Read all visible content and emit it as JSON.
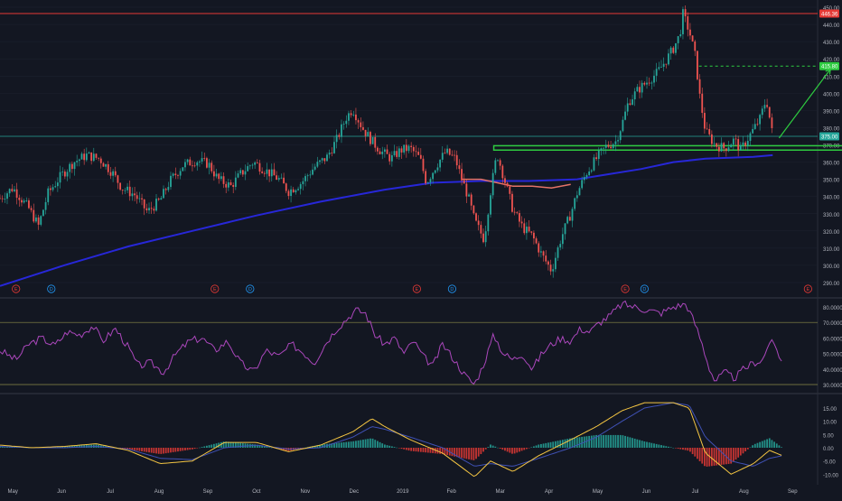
{
  "theme": {
    "background": "#131722",
    "up_color": "#26a69a",
    "down_color": "#ef5350",
    "grid_color": "#1e2330",
    "axis_text_color": "#b2b5be",
    "rsi_color": "#ab47bc",
    "macd_line_color": "#f4c542",
    "signal_line_color": "#3f51b5",
    "ma_long_color": "#2727d8",
    "ma_short_color": "#e57368",
    "resistance_color": "#e53935",
    "target_color": "#2ecc40",
    "support_box_color": "#2ecc40"
  },
  "price_labels": {
    "resistance": "446.36",
    "target": "415.80",
    "current": "375.00"
  },
  "event_markers": {
    "earnings": "E",
    "dividend": "D"
  },
  "chart_data": [
    {
      "type": "candlestick",
      "title": "",
      "y_ticks": [
        "290.00",
        "300.00",
        "310.00",
        "320.00",
        "330.00",
        "340.00",
        "350.00",
        "360.00",
        "370.00",
        "380.00",
        "390.00",
        "400.00",
        "410.00",
        "420.00",
        "430.00",
        "440.00",
        "450.00"
      ],
      "x_ticks": [
        "May",
        "Jun",
        "Jul",
        "Aug",
        "Sep",
        "Oct",
        "Nov",
        "Dec",
        "2019",
        "Feb",
        "Mar",
        "Apr",
        "May",
        "Jun",
        "Jul",
        "Aug",
        "Sep"
      ],
      "ylim": [
        285,
        452
      ],
      "x_range_days": [
        0,
        510
      ],
      "timeline": {
        "start": "2018-05-01",
        "x_unit": "days since start"
      },
      "key_points": [
        [
          0,
          339
        ],
        [
          8,
          345
        ],
        [
          18,
          333
        ],
        [
          24,
          323
        ],
        [
          30,
          342
        ],
        [
          38,
          352
        ],
        [
          46,
          360
        ],
        [
          54,
          364
        ],
        [
          62,
          362
        ],
        [
          70,
          354
        ],
        [
          76,
          345
        ],
        [
          84,
          341
        ],
        [
          92,
          331
        ],
        [
          100,
          338
        ],
        [
          106,
          349
        ],
        [
          114,
          358
        ],
        [
          122,
          361
        ],
        [
          130,
          359
        ],
        [
          136,
          350
        ],
        [
          144,
          346
        ],
        [
          150,
          353
        ],
        [
          158,
          360
        ],
        [
          166,
          355
        ],
        [
          174,
          350
        ],
        [
          180,
          343
        ],
        [
          188,
          348
        ],
        [
          196,
          357
        ],
        [
          204,
          363
        ],
        [
          210,
          373
        ],
        [
          216,
          386
        ],
        [
          220,
          391
        ],
        [
          226,
          380
        ],
        [
          232,
          372
        ],
        [
          238,
          366
        ],
        [
          244,
          362
        ],
        [
          250,
          367
        ],
        [
          256,
          368
        ],
        [
          262,
          362
        ],
        [
          266,
          348
        ],
        [
          272,
          358
        ],
        [
          278,
          366
        ],
        [
          284,
          362
        ],
        [
          288,
          350
        ],
        [
          292,
          340
        ],
        [
          296,
          326
        ],
        [
          302,
          315
        ],
        [
          306,
          343
        ],
        [
          310,
          365
        ],
        [
          314,
          352
        ],
        [
          320,
          332
        ],
        [
          326,
          322
        ],
        [
          332,
          317
        ],
        [
          338,
          306
        ],
        [
          344,
          297
        ],
        [
          350,
          316
        ],
        [
          356,
          330
        ],
        [
          360,
          342
        ],
        [
          366,
          354
        ],
        [
          372,
          362
        ],
        [
          378,
          369
        ],
        [
          384,
          372
        ],
        [
          388,
          382
        ],
        [
          392,
          395
        ],
        [
          398,
          402
        ],
        [
          404,
          407
        ],
        [
          410,
          412
        ],
        [
          416,
          420
        ],
        [
          420,
          426
        ],
        [
          424,
          434
        ],
        [
          426,
          446
        ],
        [
          430,
          436
        ],
        [
          434,
          420
        ],
        [
          436,
          401
        ],
        [
          440,
          378
        ],
        [
          446,
          370
        ],
        [
          452,
          368
        ],
        [
          458,
          373
        ],
        [
          462,
          367
        ],
        [
          468,
          376
        ],
        [
          474,
          385
        ],
        [
          478,
          397
        ],
        [
          482,
          375
        ]
      ],
      "overlays": [
        {
          "name": "",
          "color": "#2727d8",
          "points": [
            [
              0,
              288
            ],
            [
              40,
              300
            ],
            [
              80,
              311
            ],
            [
              120,
              320
            ],
            [
              160,
              329
            ],
            [
              200,
              337
            ],
            [
              240,
              344
            ],
            [
              270,
              348
            ],
            [
              300,
              349
            ],
            [
              330,
              349
            ],
            [
              360,
              350
            ],
            [
              380,
              353
            ],
            [
              400,
              356
            ],
            [
              420,
              360
            ],
            [
              440,
              362
            ],
            [
              470,
              363
            ],
            [
              482,
              364
            ]
          ]
        },
        {
          "name": "",
          "color": "#e57368",
          "points": [
            [
              288,
              350
            ],
            [
              300,
              350
            ],
            [
              310,
              348
            ],
            [
              320,
              346
            ],
            [
              332,
              346
            ],
            [
              344,
              345
            ],
            [
              356,
              347
            ]
          ]
        }
      ],
      "horizontal_lines": [
        {
          "y": 446.36,
          "label": "446.36",
          "style": "solid"
        },
        {
          "y": 415.8,
          "label": "415.80",
          "style": "dashed",
          "from_x": 436
        },
        {
          "y": 375.0,
          "label": "375.00",
          "style": "solid"
        }
      ],
      "support_box": {
        "y_low": 367.5,
        "y_high": 369.5,
        "x_from": 308,
        "x_to": 538
      },
      "arrow": {
        "from": [
          486,
          374
        ],
        "to": [
          518,
          414
        ]
      },
      "earnings_dates": [
        10,
        134,
        260,
        390,
        504
      ],
      "dividend_dates": [
        32,
        156,
        282,
        402
      ]
    },
    {
      "type": "line",
      "title": "",
      "y_ticks": [
        "30.0000",
        "40.0000",
        "50.0000",
        "60.0000",
        "70.0000",
        "80.0000"
      ],
      "ylim": [
        28,
        85
      ],
      "levels": [
        30,
        70
      ],
      "key_points": [
        [
          0,
          52
        ],
        [
          10,
          46
        ],
        [
          18,
          56
        ],
        [
          26,
          60
        ],
        [
          34,
          55
        ],
        [
          42,
          64
        ],
        [
          50,
          62
        ],
        [
          58,
          68
        ],
        [
          64,
          58
        ],
        [
          72,
          66
        ],
        [
          80,
          54
        ],
        [
          86,
          42
        ],
        [
          94,
          44
        ],
        [
          102,
          38
        ],
        [
          110,
          50
        ],
        [
          118,
          58
        ],
        [
          126,
          60
        ],
        [
          134,
          52
        ],
        [
          142,
          58
        ],
        [
          150,
          44
        ],
        [
          158,
          38
        ],
        [
          166,
          52
        ],
        [
          174,
          48
        ],
        [
          182,
          56
        ],
        [
          190,
          50
        ],
        [
          196,
          44
        ],
        [
          204,
          58
        ],
        [
          210,
          66
        ],
        [
          216,
          72
        ],
        [
          222,
          78
        ],
        [
          228,
          76
        ],
        [
          234,
          62
        ],
        [
          240,
          56
        ],
        [
          246,
          60
        ],
        [
          252,
          50
        ],
        [
          258,
          58
        ],
        [
          264,
          48
        ],
        [
          270,
          42
        ],
        [
          276,
          56
        ],
        [
          282,
          48
        ],
        [
          290,
          36
        ],
        [
          296,
          30
        ],
        [
          302,
          44
        ],
        [
          308,
          62
        ],
        [
          314,
          50
        ],
        [
          320,
          46
        ],
        [
          326,
          50
        ],
        [
          332,
          40
        ],
        [
          338,
          50
        ],
        [
          344,
          56
        ],
        [
          350,
          60
        ],
        [
          356,
          58
        ],
        [
          362,
          66
        ],
        [
          368,
          64
        ],
        [
          374,
          70
        ],
        [
          380,
          74
        ],
        [
          388,
          82
        ],
        [
          396,
          80
        ],
        [
          404,
          78
        ],
        [
          412,
          76
        ],
        [
          420,
          80
        ],
        [
          428,
          82
        ],
        [
          434,
          68
        ],
        [
          438,
          56
        ],
        [
          442,
          42
        ],
        [
          446,
          32
        ],
        [
          452,
          38
        ],
        [
          458,
          34
        ],
        [
          464,
          40
        ],
        [
          470,
          44
        ],
        [
          476,
          46
        ],
        [
          480,
          58
        ],
        [
          484,
          54
        ],
        [
          488,
          44
        ]
      ]
    },
    {
      "type": "line",
      "title": "",
      "y_ticks": [
        "-10.00",
        "-5.00",
        "0.00",
        "5.00",
        "10.00",
        "15.00"
      ],
      "ylim": [
        -13,
        19
      ],
      "series": [
        {
          "name": "",
          "color": "#f4c542",
          "key_points": [
            [
              0,
              1
            ],
            [
              20,
              0
            ],
            [
              40,
              0.5
            ],
            [
              60,
              1.5
            ],
            [
              80,
              -1
            ],
            [
              100,
              -6
            ],
            [
              120,
              -5
            ],
            [
              140,
              2
            ],
            [
              160,
              2
            ],
            [
              180,
              -1.5
            ],
            [
              200,
              1
            ],
            [
              220,
              6
            ],
            [
              232,
              11
            ],
            [
              240,
              8
            ],
            [
              256,
              3
            ],
            [
              276,
              -2
            ],
            [
              296,
              -11
            ],
            [
              306,
              -5
            ],
            [
              320,
              -9
            ],
            [
              336,
              -3
            ],
            [
              356,
              3
            ],
            [
              372,
              8
            ],
            [
              388,
              14
            ],
            [
              402,
              17
            ],
            [
              420,
              17
            ],
            [
              430,
              15
            ],
            [
              440,
              -2
            ],
            [
              456,
              -10
            ],
            [
              470,
              -6
            ],
            [
              480,
              -1
            ],
            [
              488,
              -3
            ]
          ]
        },
        {
          "name": "",
          "color": "#3f51b5",
          "key_points": [
            [
              0,
              0.5
            ],
            [
              20,
              0
            ],
            [
              40,
              0
            ],
            [
              60,
              0.5
            ],
            [
              80,
              -0.5
            ],
            [
              100,
              -4
            ],
            [
              120,
              -4.5
            ],
            [
              140,
              0
            ],
            [
              160,
              1
            ],
            [
              180,
              -0.5
            ],
            [
              200,
              0
            ],
            [
              220,
              4
            ],
            [
              232,
              8
            ],
            [
              240,
              7
            ],
            [
              256,
              4
            ],
            [
              276,
              0
            ],
            [
              296,
              -7
            ],
            [
              306,
              -6
            ],
            [
              320,
              -7
            ],
            [
              336,
              -4
            ],
            [
              356,
              0
            ],
            [
              372,
              4
            ],
            [
              388,
              10
            ],
            [
              402,
              15
            ],
            [
              420,
              17
            ],
            [
              430,
              16
            ],
            [
              440,
              4
            ],
            [
              456,
              -5
            ],
            [
              470,
              -7
            ],
            [
              480,
              -4
            ],
            [
              488,
              -3
            ]
          ]
        }
      ]
    }
  ]
}
